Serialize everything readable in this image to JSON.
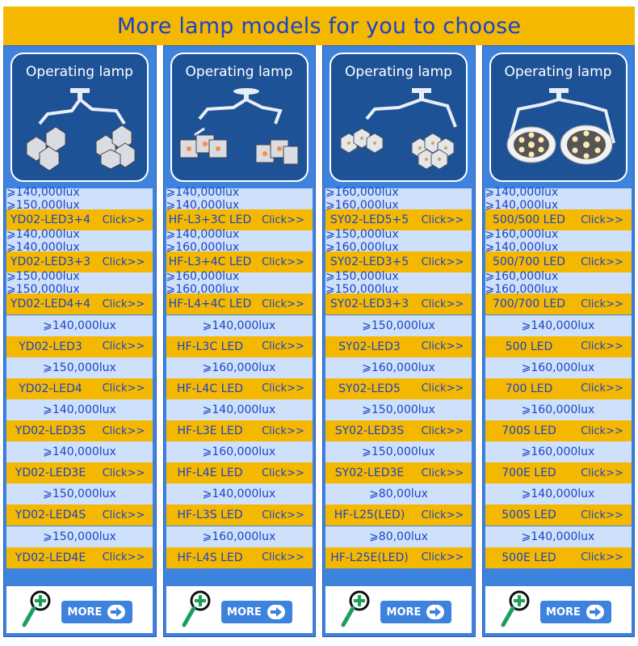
{
  "banner": {
    "title": "More lamp models for you to choose"
  },
  "columns": [
    {
      "title": "Operating lamp",
      "image_icon": "operating-lamp-hex-icon",
      "rows": [
        {
          "type": "lux",
          "text": "⩾140,000lux ⩾150,000lux"
        },
        {
          "type": "model",
          "model": "YD02-LED3+4",
          "click": "Click>>"
        },
        {
          "type": "lux",
          "text": "⩾140,000lux ⩾140,000lux"
        },
        {
          "type": "model",
          "model": "YD02-LED3+3",
          "click": "Click>>"
        },
        {
          "type": "lux",
          "text": "⩾150,000lux ⩾150,000lux"
        },
        {
          "type": "model",
          "model": "YD02-LED4+4",
          "click": "Click>>"
        },
        {
          "type": "lux",
          "text": "⩾140,000lux"
        },
        {
          "type": "model",
          "model": "YD02-LED3",
          "click": "Click>>"
        },
        {
          "type": "lux",
          "text": "⩾150,000lux"
        },
        {
          "type": "model",
          "model": "YD02-LED4",
          "click": "Click>>"
        },
        {
          "type": "lux",
          "text": "⩾140,000lux"
        },
        {
          "type": "model",
          "model": "YD02-LED3S",
          "click": "Click>>"
        },
        {
          "type": "lux",
          "text": "⩾140,000lux"
        },
        {
          "type": "model",
          "model": "YD02-LED3E",
          "click": "Click>>"
        },
        {
          "type": "lux",
          "text": "⩾150,000lux"
        },
        {
          "type": "model",
          "model": "YD02-LED4S",
          "click": "Click>>"
        },
        {
          "type": "lux",
          "text": "⩾150,000lux"
        },
        {
          "type": "model",
          "model": "YD02-LED4E",
          "click": "Click>>"
        }
      ],
      "more_label": "MORE"
    },
    {
      "title": "Operating lamp",
      "image_icon": "operating-lamp-square-icon",
      "rows": [
        {
          "type": "lux",
          "text": "⩾140,000lux ⩾140,000lux"
        },
        {
          "type": "model",
          "model": "HF-L3+3C LED",
          "click": "Click>>"
        },
        {
          "type": "lux",
          "text": "⩾140,000lux ⩾160,000lux"
        },
        {
          "type": "model",
          "model": "HF-L3+4C LED",
          "click": "Click>>"
        },
        {
          "type": "lux",
          "text": "⩾160,000lux ⩾160,000lux"
        },
        {
          "type": "model",
          "model": "HF-L4+4C LED",
          "click": "Click>>"
        },
        {
          "type": "lux",
          "text": "⩾140,000lux"
        },
        {
          "type": "model",
          "model": "HF-L3C LED",
          "click": "Click>>"
        },
        {
          "type": "lux",
          "text": "⩾160,000lux"
        },
        {
          "type": "model",
          "model": "HF-L4C LED",
          "click": "Click>>"
        },
        {
          "type": "lux",
          "text": "⩾140,000lux"
        },
        {
          "type": "model",
          "model": "HF-L3E LED",
          "click": "Click>>"
        },
        {
          "type": "lux",
          "text": "⩾160,000lux"
        },
        {
          "type": "model",
          "model": "HF-L4E LED",
          "click": "Click>>"
        },
        {
          "type": "lux",
          "text": "⩾140,000lux"
        },
        {
          "type": "model",
          "model": "HF-L3S LED",
          "click": "Click>>"
        },
        {
          "type": "lux",
          "text": "⩾160,000lux"
        },
        {
          "type": "model",
          "model": "HF-L4S LED",
          "click": "Click>>"
        }
      ],
      "more_label": "MORE"
    },
    {
      "title": "Operating lamp",
      "image_icon": "operating-lamp-cluster-icon",
      "rows": [
        {
          "type": "lux",
          "text": "⩾160,000lux ⩾160,000lux"
        },
        {
          "type": "model",
          "model": "SY02-LED5+5",
          "click": "Click>>"
        },
        {
          "type": "lux",
          "text": "⩾150,000lux ⩾160,000lux"
        },
        {
          "type": "model",
          "model": "SY02-LED3+5",
          "click": "Click>>"
        },
        {
          "type": "lux",
          "text": "⩾150,000lux ⩾150,000lux"
        },
        {
          "type": "model",
          "model": "SY02-LED3+3",
          "click": "Click>>"
        },
        {
          "type": "lux",
          "text": "⩾150,000lux"
        },
        {
          "type": "model",
          "model": "SY02-LED3",
          "click": "Click>>"
        },
        {
          "type": "lux",
          "text": "⩾160,000lux"
        },
        {
          "type": "model",
          "model": "SY02-LED5",
          "click": "Click>>"
        },
        {
          "type": "lux",
          "text": "⩾150,000lux"
        },
        {
          "type": "model",
          "model": "SY02-LED3S",
          "click": "Click>>"
        },
        {
          "type": "lux",
          "text": "⩾150,000lux"
        },
        {
          "type": "model",
          "model": "SY02-LED3E",
          "click": "Click>>"
        },
        {
          "type": "lux",
          "text": "⩾80,00lux"
        },
        {
          "type": "model",
          "model": "HF-L25(LED)",
          "click": "Click>>"
        },
        {
          "type": "lux",
          "text": "⩾80,00lux"
        },
        {
          "type": "model",
          "model": "HF-L25E(LED)",
          "click": "Click>>"
        }
      ],
      "more_label": "MORE"
    },
    {
      "title": "Operating lamp",
      "image_icon": "operating-lamp-round-icon",
      "rows": [
        {
          "type": "lux",
          "text": "⩾140,000lux ⩾140,000lux"
        },
        {
          "type": "model",
          "model": "500/500 LED",
          "click": "Click>>"
        },
        {
          "type": "lux",
          "text": "⩾160,000lux ⩾140,000lux"
        },
        {
          "type": "model",
          "model": "500/700 LED",
          "click": "Click>>"
        },
        {
          "type": "lux",
          "text": "⩾160,000lux ⩾160,000lux"
        },
        {
          "type": "model",
          "model": "700/700 LED",
          "click": "Click>>"
        },
        {
          "type": "lux",
          "text": "⩾140,000lux"
        },
        {
          "type": "model",
          "model": "500 LED",
          "click": "Click>>"
        },
        {
          "type": "lux",
          "text": "⩾160,000lux"
        },
        {
          "type": "model",
          "model": "700 LED",
          "click": "Click>>"
        },
        {
          "type": "lux",
          "text": "⩾160,000lux"
        },
        {
          "type": "model",
          "model": "700S LED",
          "click": "Click>>"
        },
        {
          "type": "lux",
          "text": "⩾160,000lux"
        },
        {
          "type": "model",
          "model": "700E LED",
          "click": "Click>>"
        },
        {
          "type": "lux",
          "text": "⩾140,000lux"
        },
        {
          "type": "model",
          "model": "500S LED",
          "click": "Click>>"
        },
        {
          "type": "lux",
          "text": "⩾140,000lux"
        },
        {
          "type": "model",
          "model": "500E LED",
          "click": "Click>>"
        }
      ],
      "more_label": "MORE"
    }
  ],
  "colors": {
    "accent_yellow": "#f5b800",
    "text_blue": "#1a44c8",
    "column_blue": "#3d82dc",
    "card_navy": "#1e5296",
    "lux_row_bg": "#cfe1fa",
    "magnifier_green": "#1aa05a"
  }
}
